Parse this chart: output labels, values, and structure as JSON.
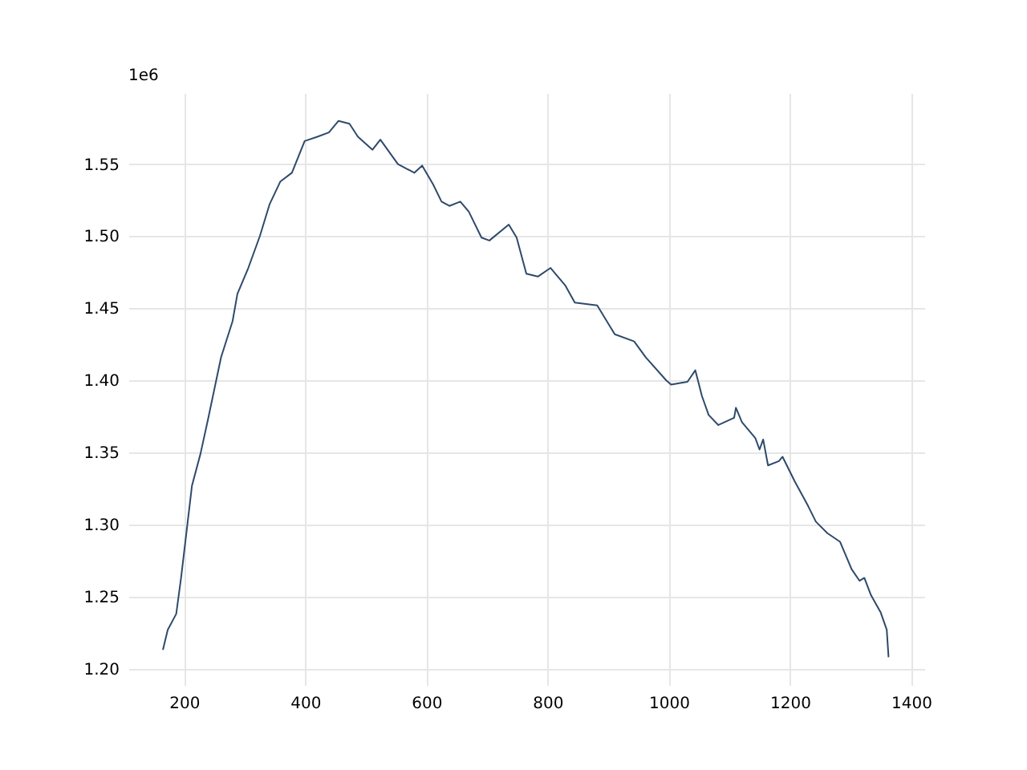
{
  "chart_data": {
    "type": "line",
    "x": [
      165,
      173,
      187,
      195,
      213,
      227,
      240,
      261,
      280,
      288,
      306,
      325,
      341,
      359,
      378,
      399,
      420,
      439,
      455,
      473,
      487,
      511,
      524,
      553,
      580,
      593,
      611,
      625,
      638,
      656,
      670,
      691,
      704,
      736,
      749,
      765,
      784,
      805,
      829,
      845,
      882,
      911,
      943,
      962,
      996,
      1004,
      1031,
      1044,
      1055,
      1066,
      1082,
      1108,
      1111,
      1121,
      1143,
      1150,
      1156,
      1164,
      1182,
      1188,
      1208,
      1230,
      1243,
      1262,
      1283,
      1302,
      1315,
      1323,
      1334,
      1350,
      1360,
      1363
    ],
    "series": [
      {
        "color": "#2e4a6b",
        "values": [
          1.213,
          1.227,
          1.238,
          1.263,
          1.327,
          1.349,
          1.374,
          1.416,
          1.441,
          1.46,
          1.478,
          1.5,
          1.522,
          1.538,
          1.544,
          1.566,
          1.569,
          1.572,
          1.58,
          1.578,
          1.569,
          1.56,
          1.567,
          1.55,
          1.544,
          1.549,
          1.536,
          1.524,
          1.521,
          1.524,
          1.517,
          1.499,
          1.497,
          1.508,
          1.499,
          1.474,
          1.472,
          1.478,
          1.466,
          1.454,
          1.452,
          1.432,
          1.427,
          1.416,
          1.4,
          1.397,
          1.399,
          1.407,
          1.389,
          1.376,
          1.369,
          1.374,
          1.381,
          1.371,
          1.36,
          1.352,
          1.359,
          1.341,
          1.344,
          1.347,
          1.33,
          1.313,
          1.302,
          1.294,
          1.288,
          1.269,
          1.261,
          1.263,
          1.251,
          1.239,
          1.227,
          1.208
        ]
      }
    ],
    "xlim": [
      108,
      1422
    ],
    "ylim": [
      1.1887,
      1.5993
    ],
    "xticks": [
      200,
      400,
      600,
      800,
      1000,
      1200,
      1400
    ],
    "yticks": [
      {
        "value": 1.2,
        "label": "1.20"
      },
      1.25,
      {
        "value": 1.3,
        "label": "1.30"
      },
      1.35,
      {
        "value": 1.4,
        "label": "1.40"
      },
      1.45,
      {
        "value": 1.5,
        "label": "1.50"
      },
      1.55
    ],
    "annotations": [
      "1e6"
    ],
    "grid": true,
    "line_style": "solid",
    "marker": "none"
  }
}
